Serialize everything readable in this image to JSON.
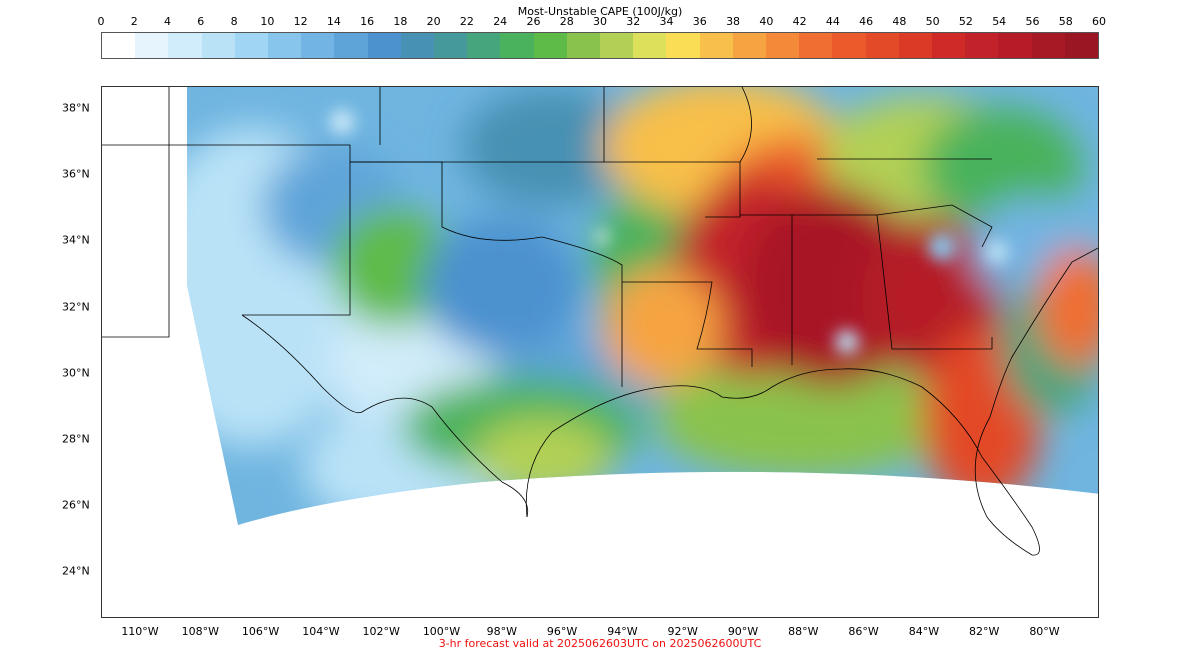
{
  "colorbar": {
    "title": "Most-Unstable CAPE (100J/kg)",
    "ticks": [
      "0",
      "2",
      "4",
      "6",
      "8",
      "10",
      "12",
      "14",
      "16",
      "18",
      "20",
      "22",
      "24",
      "26",
      "28",
      "30",
      "32",
      "34",
      "36",
      "38",
      "40",
      "42",
      "44",
      "46",
      "48",
      "50",
      "52",
      "54",
      "56",
      "58",
      "60"
    ],
    "colors": [
      "#ffffff",
      "#e6f5fd",
      "#d1ecfa",
      "#b9e2f7",
      "#a0d6f4",
      "#88c5ec",
      "#72b4e3",
      "#5ea4d9",
      "#4c92cf",
      "#4691b4",
      "#45999a",
      "#46a57d",
      "#4ab25c",
      "#5fbb48",
      "#8ac34c",
      "#b2d055",
      "#dde05a",
      "#fadc55",
      "#f8bf4a",
      "#f6a442",
      "#f5893a",
      "#f06e31",
      "#ea5a2a",
      "#e34a27",
      "#db3a27",
      "#cf2a28",
      "#c2222a",
      "#b51c28",
      "#a81926",
      "#9a1623"
    ]
  },
  "map": {
    "lat_labels": [
      "38°N",
      "36°N",
      "34°N",
      "32°N",
      "30°N",
      "28°N",
      "26°N",
      "24°N"
    ],
    "lon_labels": [
      "110°W",
      "108°W",
      "106°W",
      "104°W",
      "102°W",
      "100°W",
      "98°W",
      "96°W",
      "94°W",
      "92°W",
      "90°W",
      "88°W",
      "86°W",
      "84°W",
      "82°W",
      "80°W"
    ]
  },
  "footer": {
    "text": "3-hr forecast valid at 2025062603UTC on 2025062600UTC"
  }
}
